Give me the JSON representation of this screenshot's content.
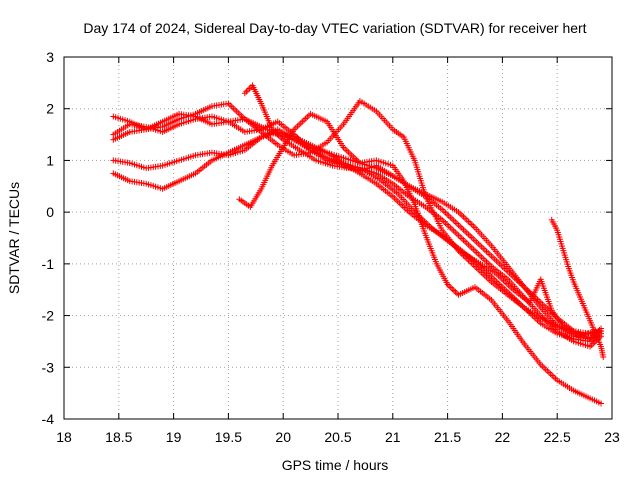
{
  "chart_data": {
    "type": "scatter",
    "title": "Day 174 of 2024, Sidereal Day-to-day VTEC variation (SDTVAR) for receiver hert",
    "xlabel": "GPS time / hours",
    "ylabel": "SDTVAR / TECUs",
    "xlim": [
      18,
      23
    ],
    "ylim": [
      -4,
      3
    ],
    "xticks": [
      18,
      18.5,
      19,
      19.5,
      20,
      20.5,
      21,
      21.5,
      22,
      22.5,
      23
    ],
    "xtick_labels": [
      "18",
      "18.5",
      "19",
      "19.5",
      "20",
      "20.5",
      "21",
      "21.5",
      "22",
      "22.5",
      "23"
    ],
    "yticks": [
      -4,
      -3,
      -2,
      -1,
      0,
      1,
      2,
      3
    ],
    "ytick_labels": [
      "-4",
      "-3",
      "-2",
      "-1",
      "0",
      "1",
      "2",
      "3"
    ],
    "grid": true,
    "marker": "+",
    "color": "#ff0000",
    "series": [
      {
        "name": "series-1",
        "points": [
          [
            18.45,
            1.85
          ],
          [
            18.6,
            1.75
          ],
          [
            18.75,
            1.6
          ],
          [
            18.9,
            1.75
          ],
          [
            19.05,
            1.9
          ],
          [
            19.2,
            1.85
          ],
          [
            19.35,
            1.7
          ],
          [
            19.5,
            1.75
          ],
          [
            19.65,
            1.8
          ],
          [
            19.8,
            1.65
          ],
          [
            19.95,
            1.5
          ],
          [
            20.1,
            1.4
          ],
          [
            20.25,
            1.25
          ],
          [
            20.4,
            1.15
          ],
          [
            20.55,
            1.05
          ],
          [
            20.7,
            0.95
          ],
          [
            20.85,
            0.85
          ],
          [
            21.0,
            0.7
          ],
          [
            21.15,
            0.5
          ],
          [
            21.3,
            0.35
          ],
          [
            21.45,
            0.2
          ],
          [
            21.6,
            0.0
          ],
          [
            21.75,
            -0.3
          ],
          [
            21.9,
            -0.65
          ],
          [
            22.05,
            -1.05
          ],
          [
            22.2,
            -1.45
          ],
          [
            22.35,
            -1.85
          ],
          [
            22.5,
            -2.2
          ],
          [
            22.65,
            -2.4
          ],
          [
            22.8,
            -2.45
          ],
          [
            22.9,
            -2.3
          ]
        ]
      },
      {
        "name": "series-2",
        "points": [
          [
            18.45,
            1.5
          ],
          [
            18.6,
            1.7
          ],
          [
            18.75,
            1.65
          ],
          [
            18.9,
            1.55
          ],
          [
            19.05,
            1.7
          ],
          [
            19.2,
            1.8
          ],
          [
            19.35,
            1.85
          ],
          [
            19.5,
            1.75
          ],
          [
            19.65,
            1.55
          ],
          [
            19.8,
            1.6
          ],
          [
            19.95,
            1.75
          ],
          [
            20.1,
            1.5
          ],
          [
            20.25,
            1.2
          ],
          [
            20.4,
            1.0
          ],
          [
            20.55,
            0.95
          ],
          [
            20.7,
            0.85
          ],
          [
            20.85,
            0.75
          ],
          [
            21.0,
            0.55
          ],
          [
            21.15,
            0.3
          ],
          [
            21.3,
            0.1
          ],
          [
            21.45,
            -0.15
          ],
          [
            21.6,
            -0.45
          ],
          [
            21.75,
            -0.75
          ],
          [
            21.9,
            -1.05
          ],
          [
            22.05,
            -1.3
          ],
          [
            22.2,
            -1.65
          ],
          [
            22.35,
            -2.0
          ],
          [
            22.5,
            -2.3
          ],
          [
            22.65,
            -2.5
          ],
          [
            22.8,
            -2.6
          ],
          [
            22.9,
            -2.4
          ]
        ]
      },
      {
        "name": "series-3",
        "points": [
          [
            18.45,
            1.0
          ],
          [
            18.6,
            0.95
          ],
          [
            18.75,
            0.85
          ],
          [
            18.9,
            0.9
          ],
          [
            19.05,
            1.0
          ],
          [
            19.2,
            1.1
          ],
          [
            19.35,
            1.15
          ],
          [
            19.5,
            1.1
          ],
          [
            19.65,
            1.2
          ],
          [
            19.8,
            1.45
          ],
          [
            19.95,
            1.6
          ],
          [
            20.1,
            1.4
          ],
          [
            20.25,
            1.2
          ],
          [
            20.4,
            1.05
          ],
          [
            20.55,
            0.9
          ],
          [
            20.7,
            0.8
          ],
          [
            20.85,
            0.9
          ],
          [
            21.0,
            0.7
          ],
          [
            21.15,
            0.5
          ],
          [
            21.3,
            0.3
          ],
          [
            21.45,
            0.05
          ],
          [
            21.6,
            -0.25
          ],
          [
            21.75,
            -0.55
          ],
          [
            21.9,
            -0.85
          ],
          [
            22.05,
            -1.15
          ],
          [
            22.2,
            -1.45
          ],
          [
            22.35,
            -1.75
          ],
          [
            22.5,
            -2.05
          ],
          [
            22.65,
            -2.3
          ],
          [
            22.8,
            -2.45
          ],
          [
            22.9,
            -2.25
          ]
        ]
      },
      {
        "name": "series-4",
        "points": [
          [
            18.45,
            0.75
          ],
          [
            18.6,
            0.6
          ],
          [
            18.75,
            0.55
          ],
          [
            18.9,
            0.45
          ],
          [
            19.05,
            0.6
          ],
          [
            19.2,
            0.75
          ],
          [
            19.35,
            1.0
          ],
          [
            19.5,
            1.15
          ],
          [
            19.65,
            1.3
          ],
          [
            19.8,
            1.45
          ],
          [
            19.95,
            1.55
          ],
          [
            20.1,
            1.45
          ],
          [
            20.25,
            1.3
          ],
          [
            20.4,
            1.15
          ],
          [
            20.55,
            0.95
          ],
          [
            20.7,
            0.75
          ],
          [
            20.85,
            0.55
          ],
          [
            21.0,
            0.3
          ],
          [
            21.15,
            0.0
          ],
          [
            21.3,
            -0.25
          ],
          [
            21.45,
            -0.45
          ],
          [
            21.6,
            -0.7
          ],
          [
            21.75,
            -0.95
          ],
          [
            21.9,
            -1.25
          ],
          [
            22.05,
            -1.55
          ],
          [
            22.2,
            -1.85
          ],
          [
            22.35,
            -2.15
          ],
          [
            22.5,
            -2.35
          ],
          [
            22.65,
            -2.45
          ],
          [
            22.8,
            -2.5
          ],
          [
            22.9,
            -2.35
          ]
        ]
      },
      {
        "name": "series-5",
        "points": [
          [
            18.45,
            1.4
          ],
          [
            18.6,
            1.55
          ],
          [
            18.75,
            1.6
          ],
          [
            18.9,
            1.65
          ],
          [
            19.05,
            1.8
          ],
          [
            19.2,
            1.9
          ],
          [
            19.35,
            2.05
          ],
          [
            19.5,
            2.1
          ],
          [
            19.65,
            1.8
          ],
          [
            19.8,
            1.55
          ],
          [
            19.95,
            1.3
          ],
          [
            20.1,
            1.1
          ],
          [
            20.25,
            1.15
          ],
          [
            20.4,
            1.35
          ],
          [
            20.55,
            1.7
          ],
          [
            20.7,
            2.15
          ],
          [
            20.85,
            1.95
          ],
          [
            21.0,
            1.6
          ],
          [
            21.1,
            1.45
          ],
          [
            21.2,
            1.0
          ],
          [
            21.3,
            0.3
          ],
          [
            21.45,
            -0.35
          ],
          [
            21.6,
            -0.75
          ],
          [
            21.75,
            -1.05
          ],
          [
            21.9,
            -1.35
          ],
          [
            22.05,
            -1.6
          ],
          [
            22.2,
            -1.85
          ],
          [
            22.35,
            -2.05
          ],
          [
            22.5,
            -2.2
          ],
          [
            22.65,
            -2.3
          ],
          [
            22.8,
            -2.35
          ],
          [
            22.9,
            -2.3
          ]
        ]
      },
      {
        "name": "series-6",
        "points": [
          [
            19.6,
            0.25
          ],
          [
            19.7,
            0.1
          ],
          [
            19.8,
            0.45
          ],
          [
            19.9,
            0.9
          ],
          [
            20.0,
            1.25
          ],
          [
            20.1,
            1.6
          ],
          [
            20.25,
            1.9
          ],
          [
            20.4,
            1.75
          ],
          [
            20.55,
            1.25
          ],
          [
            20.7,
            0.95
          ],
          [
            20.85,
            1.0
          ],
          [
            21.0,
            0.9
          ],
          [
            21.1,
            0.6
          ],
          [
            21.2,
            0.15
          ],
          [
            21.3,
            -0.45
          ],
          [
            21.4,
            -1.0
          ],
          [
            21.5,
            -1.4
          ],
          [
            21.6,
            -1.6
          ],
          [
            21.75,
            -1.45
          ],
          [
            21.9,
            -1.7
          ],
          [
            22.05,
            -2.1
          ],
          [
            22.2,
            -2.55
          ],
          [
            22.35,
            -2.95
          ],
          [
            22.5,
            -3.25
          ],
          [
            22.65,
            -3.45
          ],
          [
            22.8,
            -3.6
          ],
          [
            22.9,
            -3.7
          ]
        ]
      },
      {
        "name": "series-7",
        "points": [
          [
            19.65,
            2.3
          ],
          [
            19.72,
            2.45
          ],
          [
            19.8,
            2.1
          ],
          [
            19.9,
            1.6
          ],
          [
            20.0,
            1.4
          ],
          [
            20.15,
            1.2
          ],
          [
            20.3,
            1.0
          ],
          [
            20.45,
            0.9
          ],
          [
            20.6,
            0.85
          ],
          [
            20.75,
            0.8
          ],
          [
            20.9,
            0.6
          ],
          [
            21.05,
            0.35
          ],
          [
            21.2,
            0.0
          ],
          [
            21.35,
            -0.3
          ],
          [
            21.5,
            -0.55
          ],
          [
            21.65,
            -0.8
          ],
          [
            21.8,
            -1.0
          ],
          [
            21.95,
            -1.2
          ],
          [
            22.1,
            -1.5
          ],
          [
            22.25,
            -1.75
          ],
          [
            22.35,
            -1.3
          ],
          [
            22.45,
            -1.9
          ],
          [
            22.55,
            -2.2
          ],
          [
            22.7,
            -2.4
          ],
          [
            22.85,
            -2.3
          ]
        ]
      },
      {
        "name": "series-8",
        "points": [
          [
            22.45,
            -0.15
          ],
          [
            22.5,
            -0.35
          ],
          [
            22.55,
            -0.7
          ],
          [
            22.6,
            -1.05
          ],
          [
            22.65,
            -1.35
          ],
          [
            22.7,
            -1.6
          ],
          [
            22.75,
            -1.85
          ],
          [
            22.8,
            -2.1
          ],
          [
            22.85,
            -2.35
          ],
          [
            22.9,
            -2.6
          ],
          [
            22.92,
            -2.8
          ]
        ]
      }
    ]
  }
}
